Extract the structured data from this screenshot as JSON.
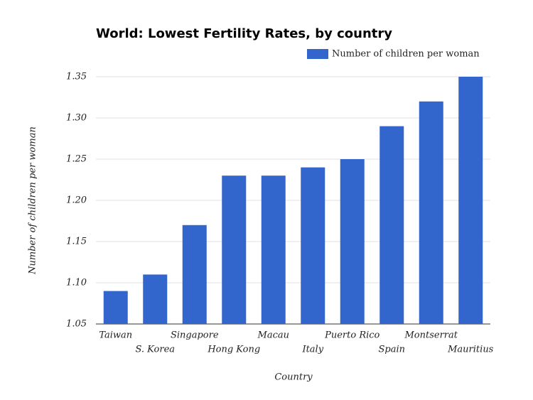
{
  "chart_data": {
    "type": "bar",
    "title": "World: Lowest Fertility Rates, by country",
    "x_label": "Country",
    "y_label": "Number of children per woman",
    "categories": [
      "Taiwan",
      "S. Korea",
      "Singapore",
      "Hong Kong",
      "Macau",
      "Italy",
      "Puerto Rico",
      "Spain",
      "Montserrat",
      "Mauritius"
    ],
    "series": [
      {
        "name": "Number of children per woman",
        "color": "#3366cc",
        "values": [
          1.09,
          1.11,
          1.17,
          1.23,
          1.23,
          1.24,
          1.25,
          1.29,
          1.32,
          1.35
        ]
      }
    ],
    "ylim": [
      1.05,
      1.35
    ],
    "yticks": [
      1.05,
      {
        "value": 1.1,
        "label": "1.10"
      },
      1.15,
      {
        "value": 1.2,
        "label": "1.20"
      },
      1.25,
      {
        "value": 1.3,
        "label": "1.30"
      },
      1.35
    ],
    "grid": true,
    "legend": "top-right"
  }
}
